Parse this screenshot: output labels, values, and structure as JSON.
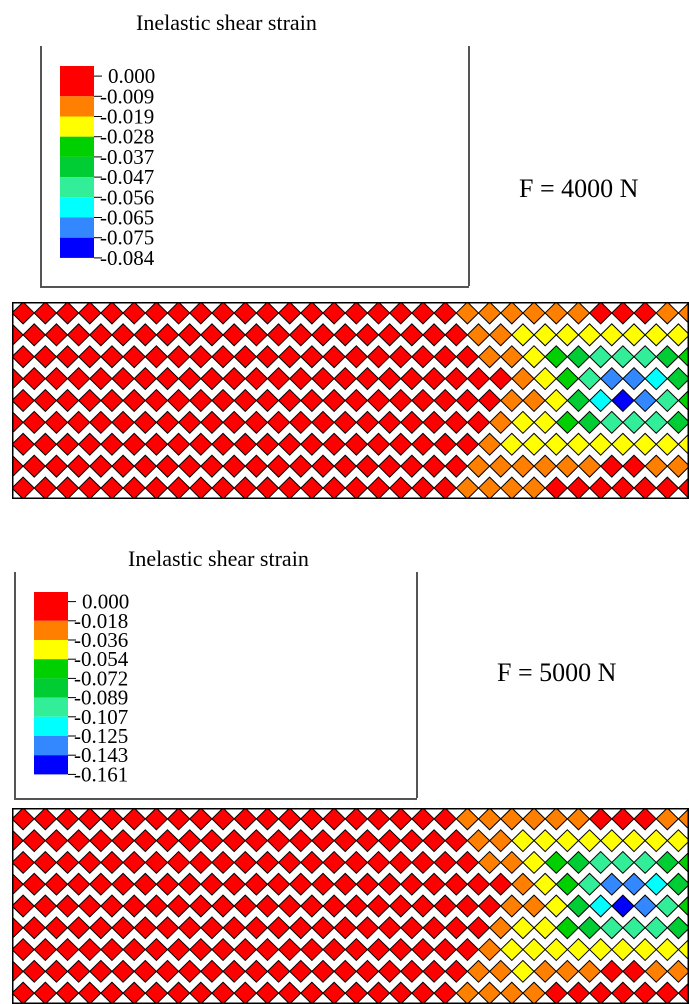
{
  "colors": [
    "#ff0000",
    "#ff7f00",
    "#ffff00",
    "#00d000",
    "#00cc33",
    "#33ee99",
    "#00ffff",
    "#3388ff",
    "#0000ff"
  ],
  "panels": [
    {
      "legend_title": "Inelastic shear strain",
      "levels": [
        "0.000",
        "-0.009",
        "-0.019",
        "-0.028",
        "-0.037",
        "-0.047",
        "-0.056",
        "-0.065",
        "-0.075",
        "-0.084"
      ],
      "force_label": "F = 4000 N"
    },
    {
      "legend_title": "Inelastic shear strain",
      "levels": [
        "0.000",
        "-0.018",
        "-0.036",
        "-0.054",
        "-0.072",
        "-0.089",
        "-0.107",
        "-0.125",
        "-0.143",
        "-0.161"
      ],
      "force_label": "F = 5000 N"
    }
  ]
}
